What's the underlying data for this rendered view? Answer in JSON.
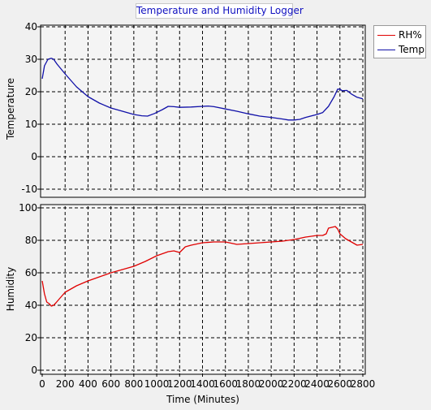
{
  "title": "Temperature and Humidity Logger",
  "colors": {
    "temp": "#1010a8",
    "rh": "#e00000",
    "grid": "#000000",
    "plot_bg": "#f4f4f4"
  },
  "chart_data": [
    {
      "type": "line",
      "panel": "top",
      "ylabel": "Temperature",
      "xlabel": "",
      "xlim": [
        0,
        2800
      ],
      "ylim": [
        -10,
        40
      ],
      "yticks": [
        40,
        30,
        20,
        10,
        0,
        -10
      ],
      "grid": true,
      "series": [
        {
          "name": "Temp",
          "color": "#1010a8",
          "x": [
            0,
            20,
            50,
            80,
            100,
            130,
            200,
            300,
            400,
            500,
            600,
            700,
            800,
            870,
            920,
            980,
            1050,
            1100,
            1150,
            1200,
            1300,
            1400,
            1450,
            1500,
            1600,
            1700,
            1800,
            1900,
            2000,
            2100,
            2150,
            2200,
            2250,
            2300,
            2400,
            2450,
            2500,
            2550,
            2580,
            2600,
            2620,
            2660,
            2700,
            2750,
            2800
          ],
          "y": [
            24,
            28,
            30,
            30.3,
            30,
            28.5,
            25.5,
            21.5,
            18.5,
            16.5,
            15,
            14,
            13,
            12.6,
            12.5,
            13.3,
            14.5,
            15.5,
            15.4,
            15.2,
            15.3,
            15.5,
            15.6,
            15.4,
            14.7,
            14,
            13.2,
            12.5,
            12.1,
            11.6,
            11.3,
            11.3,
            11.5,
            12.1,
            13,
            13.6,
            15.5,
            18.5,
            20.8,
            20.8,
            20.3,
            20.4,
            19.3,
            18.3,
            17.8
          ]
        }
      ]
    },
    {
      "type": "line",
      "panel": "bottom",
      "ylabel": "Humidity",
      "xlabel": "Time (Minutes)",
      "xlim": [
        0,
        2800
      ],
      "ylim": [
        0,
        100
      ],
      "yticks": [
        100,
        80,
        60,
        40,
        20,
        0
      ],
      "xticks": [
        0,
        200,
        400,
        600,
        800,
        1000,
        1200,
        1400,
        1600,
        1800,
        2000,
        2200,
        2400,
        2600,
        2800
      ],
      "grid": true,
      "series": [
        {
          "name": "RH%",
          "color": "#e00000",
          "x": [
            0,
            20,
            40,
            60,
            80,
            100,
            120,
            150,
            200,
            300,
            400,
            500,
            600,
            700,
            800,
            900,
            1000,
            1100,
            1150,
            1200,
            1250,
            1300,
            1400,
            1500,
            1600,
            1700,
            1800,
            1900,
            2000,
            2100,
            2200,
            2300,
            2400,
            2450,
            2480,
            2500,
            2530,
            2560,
            2580,
            2600,
            2650,
            2700,
            2750,
            2800
          ],
          "y": [
            55,
            47,
            42,
            41,
            39.5,
            40,
            41.5,
            44,
            48,
            52,
            55,
            57.5,
            60,
            62,
            64,
            67,
            70.5,
            73,
            73.5,
            72.5,
            76,
            77,
            78.5,
            79,
            79,
            77.5,
            78,
            78.5,
            79,
            79.5,
            80.5,
            82,
            83,
            83,
            84,
            87.5,
            88,
            88.5,
            87,
            84,
            81,
            79,
            77,
            77.5
          ]
        }
      ]
    }
  ]
}
